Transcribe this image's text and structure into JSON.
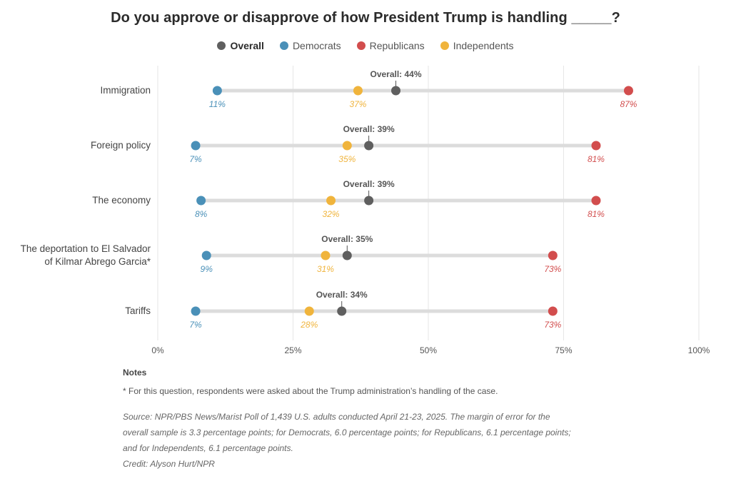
{
  "title": "Do you approve or disapprove of how President Trump is handling _____?",
  "legend": [
    {
      "label": "Overall",
      "color": "#5f5f5f",
      "bold": true
    },
    {
      "label": "Democrats",
      "color": "#4a90b8",
      "bold": false
    },
    {
      "label": "Republicans",
      "color": "#d24d4d",
      "bold": false
    },
    {
      "label": "Independents",
      "color": "#f0b43c",
      "bold": false
    }
  ],
  "chart_data": {
    "type": "dot-plot",
    "title": "Do you approve or disapprove of how President Trump is handling _____?",
    "xlim": [
      0,
      100
    ],
    "x_ticks": [
      "0%",
      "25%",
      "50%",
      "75%",
      "100%"
    ],
    "x_tick_values": [
      0,
      25,
      50,
      75,
      100
    ],
    "categories": [
      [
        "Immigration"
      ],
      [
        "Foreign policy"
      ],
      [
        "The economy"
      ],
      [
        "The deportation to El Salvador",
        "of Kilmar Abrego Garcia*"
      ],
      [
        "Tariffs"
      ]
    ],
    "series": [
      {
        "name": "Democrats",
        "color": "#4a90b8",
        "values": [
          11,
          7,
          8,
          9,
          7
        ]
      },
      {
        "name": "Independents",
        "color": "#f0b43c",
        "values": [
          37,
          35,
          32,
          31,
          28
        ]
      },
      {
        "name": "Overall",
        "color": "#5f5f5f",
        "values": [
          44,
          39,
          39,
          35,
          34
        ]
      },
      {
        "name": "Republicans",
        "color": "#d24d4d",
        "values": [
          87,
          81,
          81,
          73,
          73
        ]
      }
    ],
    "overall_label_prefix": "Overall: "
  },
  "notes": {
    "heading": "Notes",
    "footnote": "* For this question, respondents were asked about the Trump administration’s handling of the case.",
    "source_lines": [
      "Source: NPR/PBS News/Marist Poll of 1,439 U.S. adults conducted April 21-23, 2025. The margin of error for the",
      "overall sample is 3.3 percentage points; for Democrats, 6.0 percentage points; for Republicans, 6.1 percentage points;",
      "and for Independents, 6.1 percentage points."
    ],
    "credit": "Credit: Alyson Hurt/NPR"
  }
}
